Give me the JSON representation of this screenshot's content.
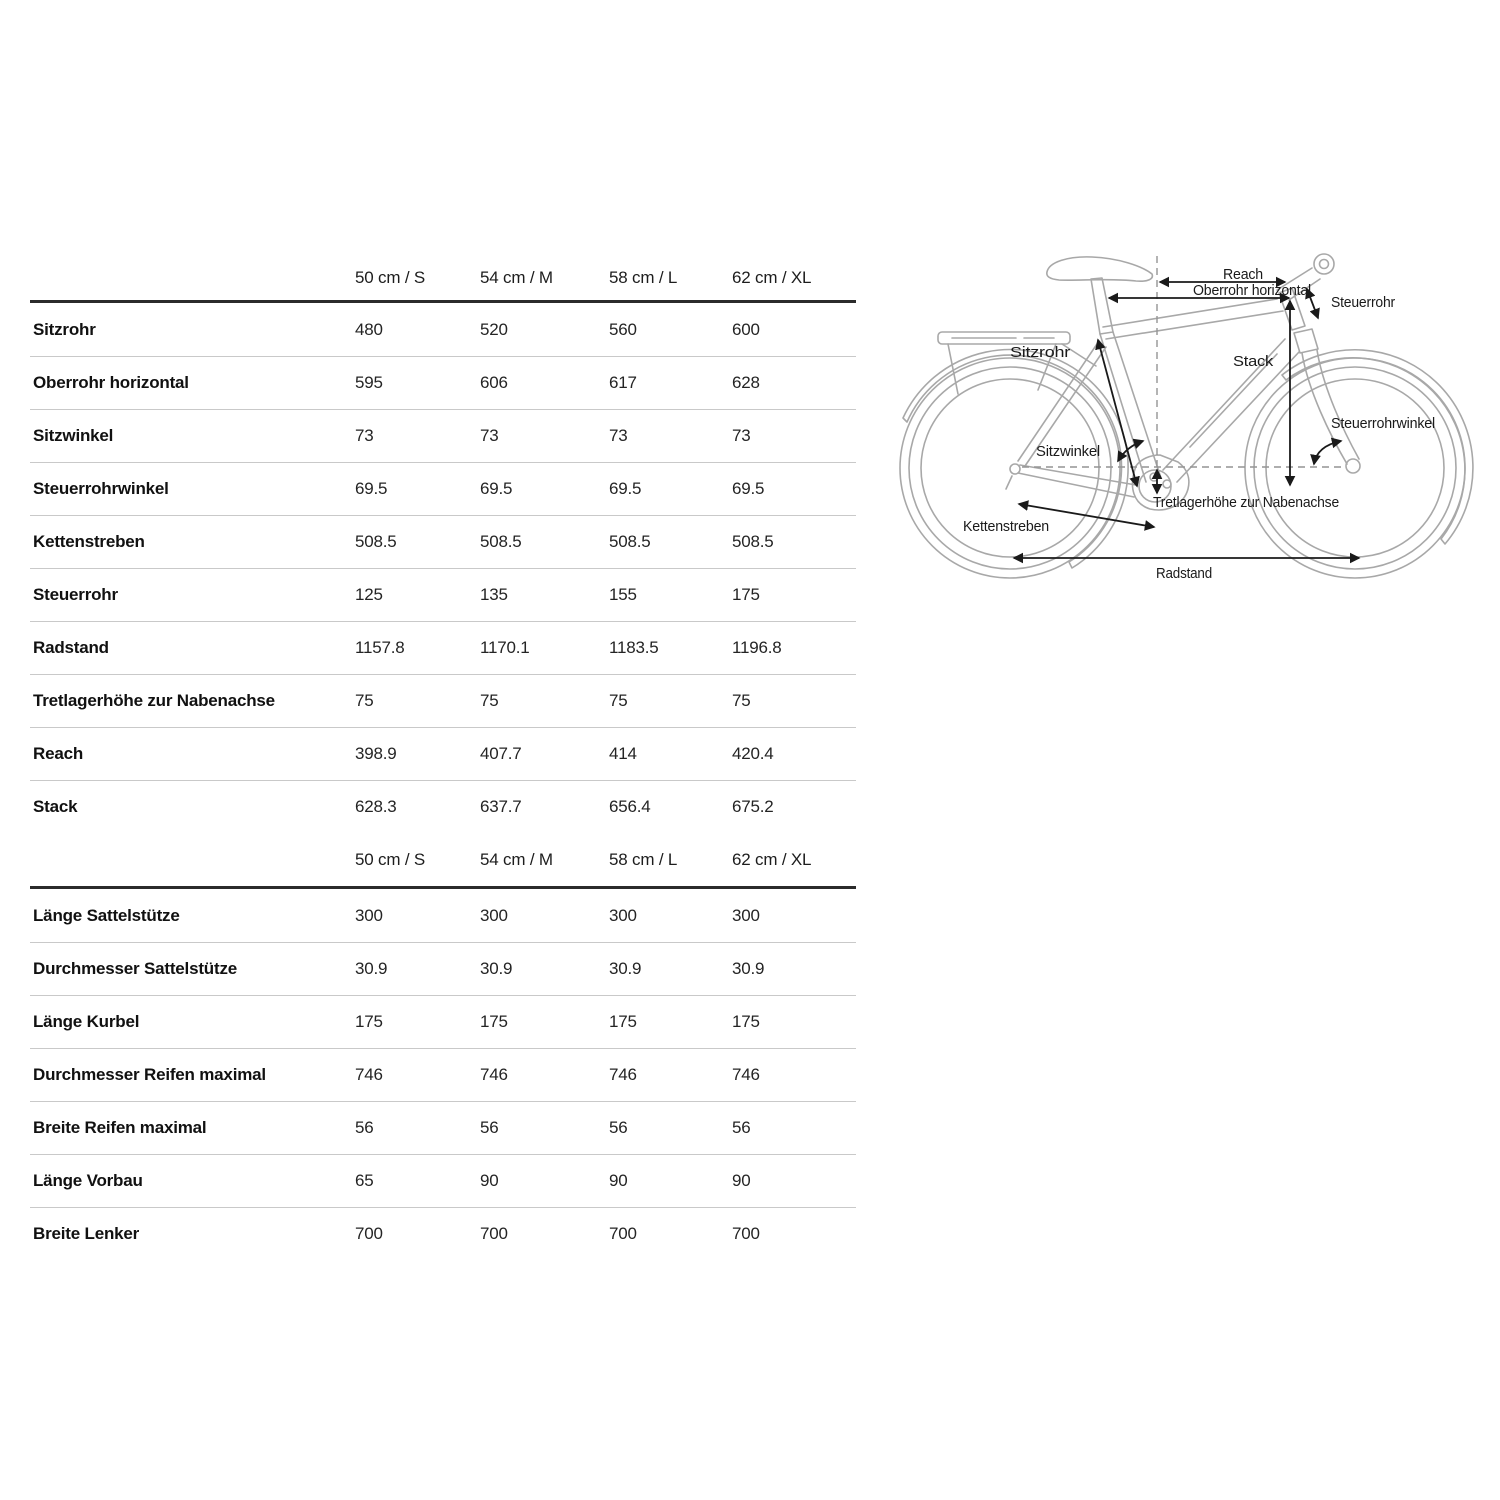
{
  "table": {
    "size_headers": [
      "50 cm / S",
      "54 cm / M",
      "58 cm / L",
      "62 cm / XL"
    ],
    "sections": [
      {
        "name": "frame-geometry",
        "rows": [
          {
            "label": "Sitzrohr",
            "values": [
              "480",
              "520",
              "560",
              "600"
            ]
          },
          {
            "label": "Oberrohr horizontal",
            "values": [
              "595",
              "606",
              "617",
              "628"
            ]
          },
          {
            "label": "Sitzwinkel",
            "values": [
              "73",
              "73",
              "73",
              "73"
            ]
          },
          {
            "label": "Steuerrohrwinkel",
            "values": [
              "69.5",
              "69.5",
              "69.5",
              "69.5"
            ]
          },
          {
            "label": "Kettenstreben",
            "values": [
              "508.5",
              "508.5",
              "508.5",
              "508.5"
            ]
          },
          {
            "label": "Steuerrohr",
            "values": [
              "125",
              "135",
              "155",
              "175"
            ]
          },
          {
            "label": "Radstand",
            "values": [
              "1157.8",
              "1170.1",
              "1183.5",
              "1196.8"
            ]
          },
          {
            "label": "Tretlagerhöhe zur Nabenachse",
            "values": [
              "75",
              "75",
              "75",
              "75"
            ]
          },
          {
            "label": "Reach",
            "values": [
              "398.9",
              "407.7",
              "414",
              "420.4"
            ]
          },
          {
            "label": "Stack",
            "values": [
              "628.3",
              "637.7",
              "656.4",
              "675.2"
            ]
          }
        ]
      },
      {
        "name": "components",
        "rows": [
          {
            "label": "Länge Sattelstütze",
            "values": [
              "300",
              "300",
              "300",
              "300"
            ]
          },
          {
            "label": "Durchmesser Sattelstütze",
            "values": [
              "30.9",
              "30.9",
              "30.9",
              "30.9"
            ]
          },
          {
            "label": "Länge Kurbel",
            "values": [
              "175",
              "175",
              "175",
              "175"
            ]
          },
          {
            "label": "Durchmesser Reifen maximal",
            "values": [
              "746",
              "746",
              "746",
              "746"
            ]
          },
          {
            "label": "Breite Reifen maximal",
            "values": [
              "56",
              "56",
              "56",
              "56"
            ]
          },
          {
            "label": "Länge Vorbau",
            "values": [
              "65",
              "90",
              "90",
              "90"
            ]
          },
          {
            "label": "Breite Lenker",
            "values": [
              "700",
              "700",
              "700",
              "700"
            ]
          }
        ]
      }
    ]
  },
  "diagram": {
    "labels": {
      "reach": "Reach",
      "oberrohr": "Oberrohr horizontal",
      "steuerrohr": "Steuerrohr",
      "sitzrohr": "Sitzrohr",
      "stack": "Stack",
      "steuerrohrwinkel": "Steuerrohrwinkel",
      "sitzwinkel": "Sitzwinkel",
      "tretlagerhoehe": "Tretlagerhöhe zur Nabenachse",
      "kettenstreben": "Kettenstreben",
      "radstand": "Radstand"
    }
  },
  "colors": {
    "background": "#ffffff",
    "bike_line_art": "#a8a8a8",
    "reference_dashed": "#949494",
    "annotation": "#1a1a1a",
    "divider_thin": "#c9c9c9",
    "divider_thick": "#2b2b2b"
  }
}
